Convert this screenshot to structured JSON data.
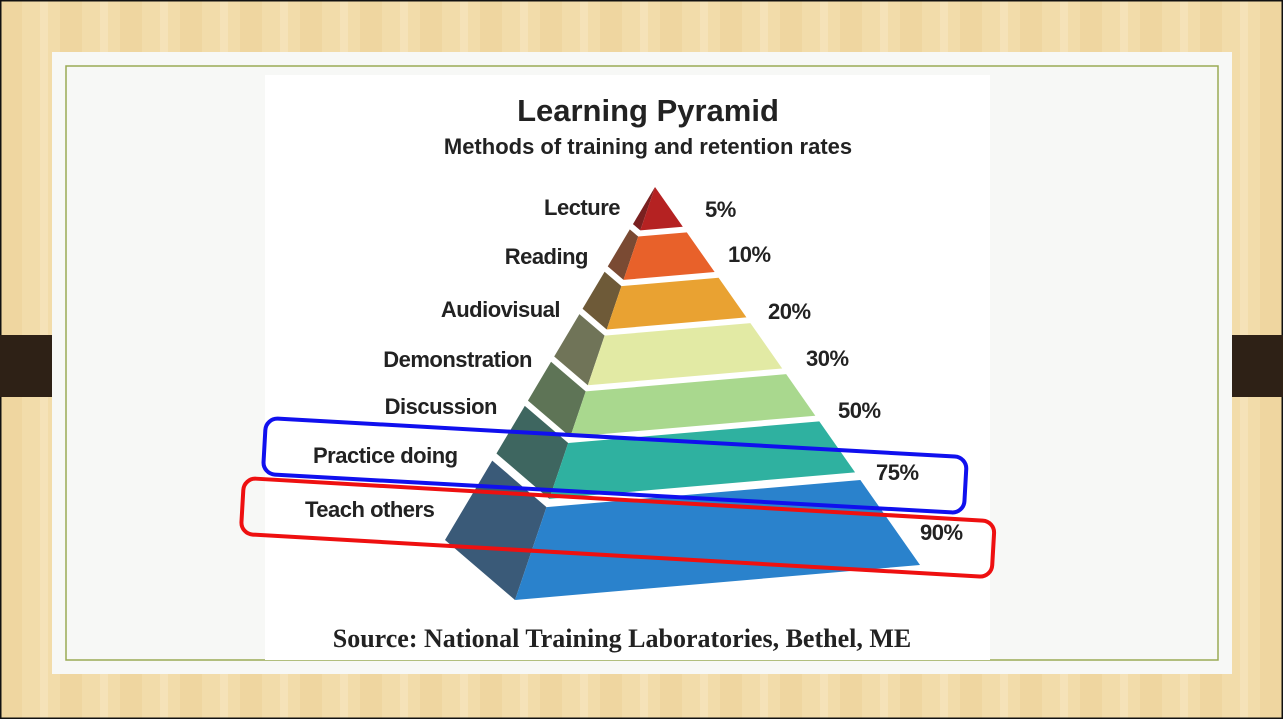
{
  "header": {
    "title": "Learning Pyramid",
    "subtitle": "Methods of training and retention rates"
  },
  "levels": [
    {
      "label": "Lecture",
      "rate": "5%"
    },
    {
      "label": "Reading",
      "rate": "10%"
    },
    {
      "label": "Audiovisual",
      "rate": "20%"
    },
    {
      "label": "Demonstration",
      "rate": "30%"
    },
    {
      "label": "Discussion",
      "rate": "50%"
    },
    {
      "label": "Practice doing",
      "rate": "75%"
    },
    {
      "label": "Teach others",
      "rate": "90%"
    }
  ],
  "source": "Source: National Training Laboratories, Bethel, ME"
}
